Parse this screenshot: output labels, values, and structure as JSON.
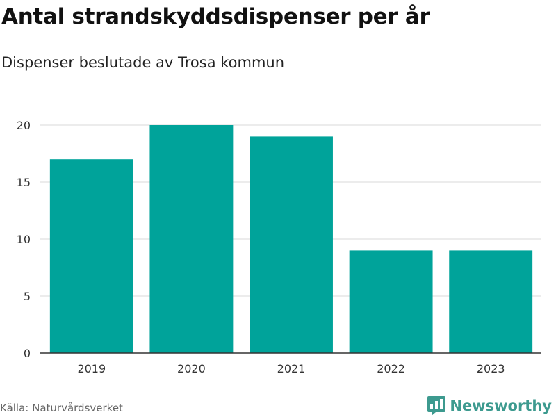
{
  "header": {
    "title": "Antal strandskyddsdispenser per år",
    "subtitle": "Dispenser beslutade av Trosa kommun"
  },
  "footer": {
    "source": "Källa: Naturvårdsverket",
    "brand": "Newsworthy",
    "brand_icon": "bar-chart-speech-bubble-icon",
    "brand_color": "#3d9a8f"
  },
  "colors": {
    "bar": "#00a39a",
    "grid": "#d9d9d9",
    "axis": "#333333",
    "tick_text": "#333333"
  },
  "chart_data": {
    "type": "bar",
    "categories": [
      "2019",
      "2020",
      "2021",
      "2022",
      "2023"
    ],
    "values": [
      17,
      20,
      19,
      9,
      9
    ],
    "title": "Antal strandskyddsdispenser per år",
    "subtitle": "Dispenser beslutade av Trosa kommun",
    "xlabel": "",
    "ylabel": "",
    "ylim": [
      0,
      20
    ],
    "yticks": [
      0,
      5,
      10,
      15,
      20
    ],
    "grid": true,
    "legend": "none"
  }
}
